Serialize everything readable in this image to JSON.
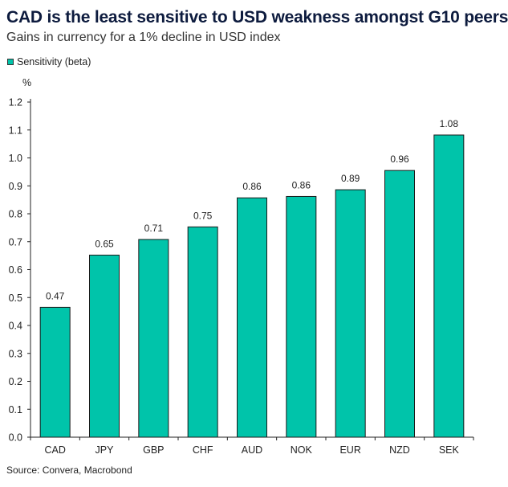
{
  "header": {
    "title": "CAD is the least sensitive to USD weakness amongst G10 peers",
    "subtitle": "Gains in currency for a 1% decline in USD index"
  },
  "legend": {
    "label": "Sensitivity (beta)"
  },
  "axis": {
    "unit": "%"
  },
  "footer": {
    "source": "Source: Convera, Macrobond"
  },
  "colors": {
    "bar": "#00c4aa",
    "bar_stroke": "#1a1a1a",
    "axis": "#222222"
  },
  "chart_data": {
    "type": "bar",
    "title": "CAD is the least sensitive to USD weakness amongst G10 peers",
    "subtitle": "Gains in currency for a 1% decline in USD index",
    "categories": [
      "CAD",
      "JPY",
      "GBP",
      "CHF",
      "AUD",
      "NOK",
      "EUR",
      "NZD",
      "SEK"
    ],
    "series": [
      {
        "name": "Sensitivity (beta)",
        "values": [
          0.465,
          0.652,
          0.708,
          0.753,
          0.857,
          0.862,
          0.886,
          0.955,
          1.082
        ],
        "labels": [
          "0.47",
          "0.65",
          "0.71",
          "0.75",
          "0.86",
          "0.86",
          "0.89",
          "0.96",
          "1.08"
        ]
      }
    ],
    "ylabel": "%",
    "ylim": [
      0,
      1.2
    ],
    "yticks": [
      "0.0",
      "0.1",
      "0.2",
      "0.3",
      "0.4",
      "0.5",
      "0.6",
      "0.7",
      "0.8",
      "0.9",
      "1.0",
      "1.1",
      "1.2"
    ],
    "grid": false,
    "legend_position": "top-left"
  }
}
